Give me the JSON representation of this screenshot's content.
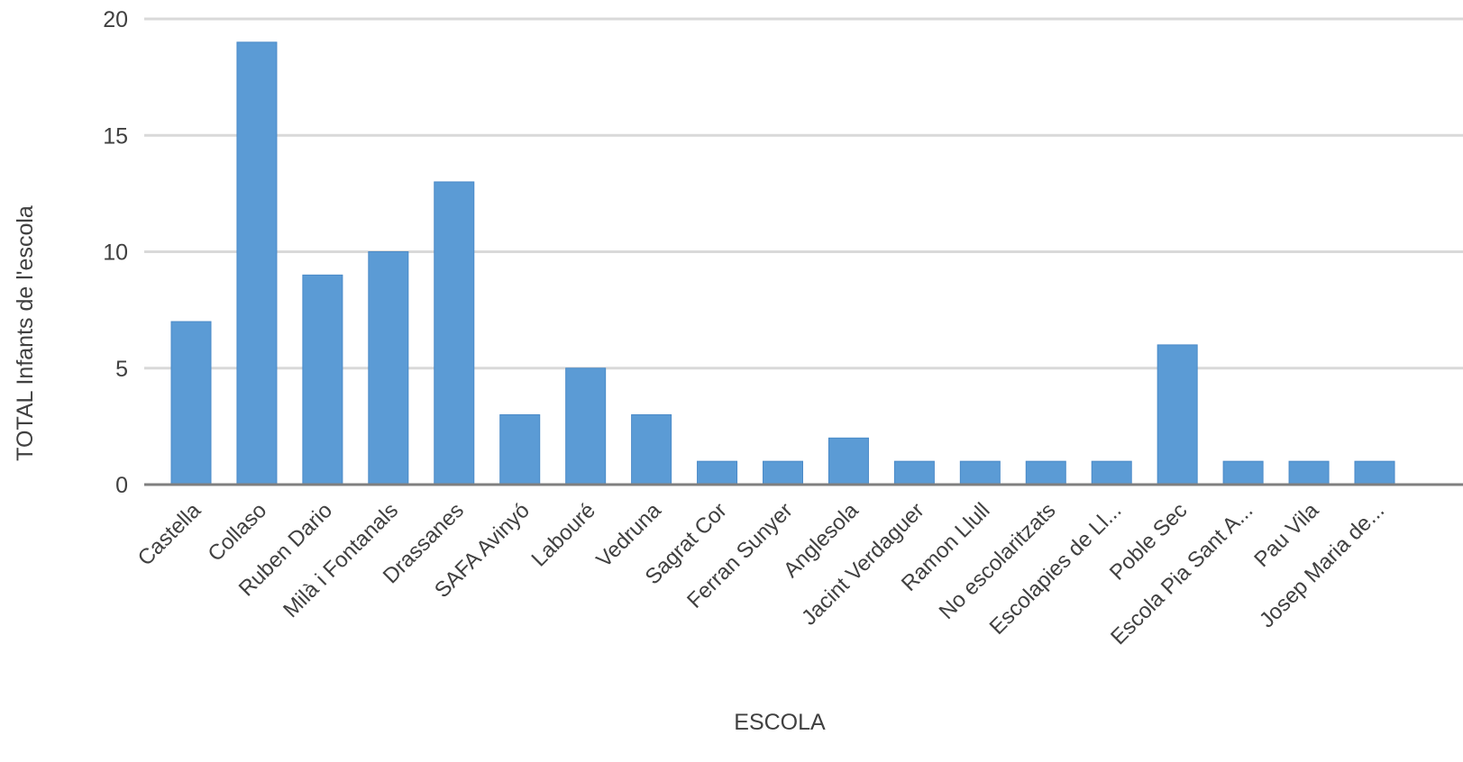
{
  "chart_data": {
    "type": "bar",
    "categories": [
      "Castella",
      "Collaso",
      "Ruben Dario",
      "Milà i Fontanals",
      "Drassanes",
      "SAFA Avinyó",
      "Labouré",
      "Vedruna",
      "Sagrat Cor",
      "Ferran Sunyer",
      "Anglesola",
      "Jacint Verdaguer",
      "Ramon Llull",
      "No escolaritzats",
      "Escolapies de Ll...",
      "Poble Sec",
      "Escola Pia Sant A...",
      "Pau Vila",
      "Josep Maria de..."
    ],
    "values": [
      7,
      19,
      9,
      10,
      13,
      3,
      5,
      3,
      1,
      1,
      2,
      1,
      1,
      1,
      1,
      6,
      1,
      1,
      1
    ],
    "xlabel": "ESCOLA",
    "ylabel": "TOTAL Infants de l'escola",
    "ylim": [
      0,
      20
    ],
    "yticks": [
      "0",
      "5",
      "10",
      "15",
      "20"
    ],
    "grid": true,
    "bar_color": "#5b9bd5",
    "grid_color": "#d9d9d9",
    "axis_color": "#7f7f7f"
  }
}
